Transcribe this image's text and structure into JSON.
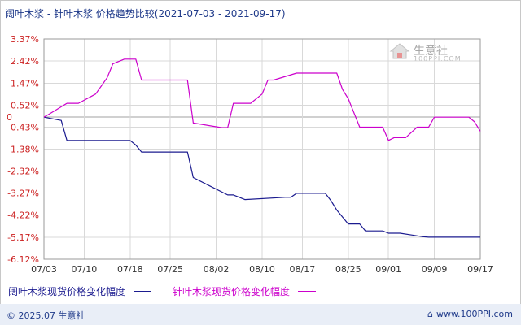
{
  "title": "阔叶木浆 - 针叶木浆 价格趋势比较(2021-07-03 - 2021-09-17)",
  "watermark": {
    "text": "生意社",
    "sub": "100PPI.COM"
  },
  "footer": {
    "copyright": "© 2025.07 生意社",
    "site": "www.100PPI.com",
    "home_icon": "home-icon"
  },
  "colors": {
    "series1": "#1b1b8f",
    "series2": "#cc00cc",
    "grid": "#d9d9d9",
    "axis": "#808080",
    "text": "#1f3a8a"
  },
  "chart_data": {
    "type": "line",
    "title": "阔叶木浆 - 针叶木浆 价格趋势比较(2021-07-03 - 2021-09-17)",
    "xlabel": "",
    "ylabel": "",
    "x_ticks": [
      "07/03",
      "07/10",
      "07/18",
      "07/25",
      "08/02",
      "08/10",
      "08/17",
      "08/25",
      "09/01",
      "09/09",
      "09/17"
    ],
    "y_ticks": [
      "3.37%",
      "2.42%",
      "1.47%",
      "0.52%",
      "0",
      "-0.43%",
      "-1.38%",
      "-2.32%",
      "-3.27%",
      "-4.22%",
      "-5.17%",
      "-6.12%"
    ],
    "ylim": [
      -6.12,
      3.37
    ],
    "grid": true,
    "legend_position": "bottom",
    "series": [
      {
        "name": "阔叶木浆现货价格变化幅度",
        "x": [
          "07/03",
          "07/06",
          "07/07",
          "07/18",
          "07/19",
          "07/20",
          "07/28",
          "07/29",
          "08/04",
          "08/05",
          "08/07",
          "08/14",
          "08/15",
          "08/16",
          "08/21",
          "08/22",
          "08/23",
          "08/24",
          "08/25",
          "08/26",
          "08/27",
          "08/28",
          "08/31",
          "09/01",
          "09/02",
          "09/03",
          "09/07",
          "09/08",
          "09/09",
          "09/10",
          "09/17"
        ],
        "values": [
          0,
          -0.14,
          -1.0,
          -1.0,
          -1.2,
          -1.5,
          -1.5,
          -2.6,
          -3.35,
          -3.35,
          -3.55,
          -3.45,
          -3.45,
          -3.28,
          -3.28,
          -3.6,
          -4.0,
          -4.3,
          -4.6,
          -4.6,
          -4.6,
          -4.9,
          -4.9,
          -5.0,
          -5.0,
          -5.0,
          -5.15,
          -5.17,
          -5.17,
          -5.17,
          -5.17
        ]
      },
      {
        "name": "针叶木浆现货价格变化幅度",
        "x": [
          "07/03",
          "07/04",
          "07/07",
          "07/09",
          "07/12",
          "07/14",
          "07/15",
          "07/17",
          "07/19",
          "07/20",
          "07/28",
          "07/29",
          "08/03",
          "08/04",
          "08/05",
          "08/08",
          "08/10",
          "08/11",
          "08/12",
          "08/16",
          "08/17",
          "08/23",
          "08/24",
          "08/25",
          "08/27",
          "08/30",
          "08/31",
          "09/01",
          "09/02",
          "09/03",
          "09/04",
          "09/06",
          "09/07",
          "09/08",
          "09/09",
          "09/10",
          "09/11",
          "09/12",
          "09/13",
          "09/14",
          "09/15",
          "09/16",
          "09/17"
        ],
        "values": [
          0,
          0.15,
          0.6,
          0.6,
          1.0,
          1.7,
          2.3,
          2.5,
          2.5,
          1.6,
          1.6,
          -0.25,
          -0.45,
          -0.45,
          0.6,
          0.6,
          1.0,
          1.6,
          1.6,
          1.9,
          1.9,
          1.9,
          1.2,
          0.8,
          -0.43,
          -0.43,
          -0.43,
          -1.0,
          -0.88,
          -0.88,
          -0.88,
          -0.43,
          -0.43,
          -0.43,
          0.0,
          0.0,
          0.0,
          0.0,
          0.0,
          0.0,
          0.0,
          -0.2,
          -0.6
        ]
      }
    ]
  }
}
